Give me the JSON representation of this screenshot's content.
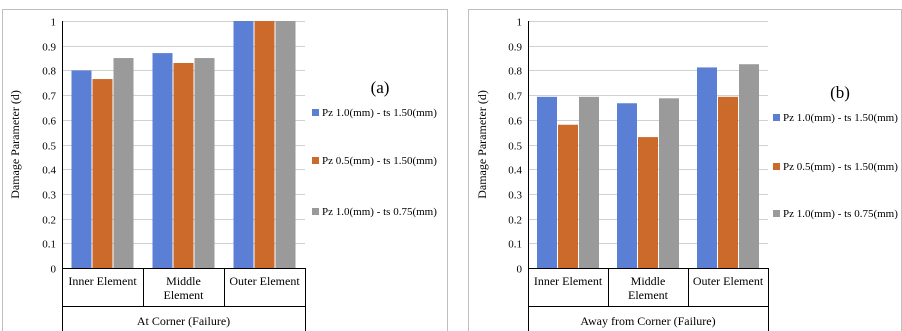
{
  "chart_data": [
    {
      "type": "bar",
      "panel_label": "(a)",
      "ylabel": "Damage Parameter (d)",
      "xlabel": "At Corner (Failure)",
      "ylim": [
        0,
        1
      ],
      "yticks": [
        "0",
        "0.1",
        "0.2",
        "0.3",
        "0.4",
        "0.5",
        "0.6",
        "0.7",
        "0.8",
        "0.9",
        "1"
      ],
      "grid": true,
      "legend_position": "right",
      "categories": [
        [
          "Inner Element"
        ],
        [
          "Middle",
          "Element"
        ],
        [
          "Outer Element"
        ]
      ],
      "series": [
        {
          "name": "Pz 1.0(mm) - ts 1.50(mm)",
          "color": "#5b7fd4",
          "values": [
            0.8,
            0.87,
            1.0
          ]
        },
        {
          "name": "Pz 0.5(mm) - ts 1.50(mm)",
          "color": "#cc6a2c",
          "values": [
            0.765,
            0.83,
            1.0
          ]
        },
        {
          "name": "Pz 1.0(mm) - ts 0.75(mm)",
          "color": "#9a9a9a",
          "values": [
            0.85,
            0.85,
            1.0
          ]
        }
      ]
    },
    {
      "type": "bar",
      "panel_label": "(b)",
      "ylabel": "Damage Parameter (d)",
      "xlabel": "Away from Corner (Failure)",
      "ylim": [
        0,
        1
      ],
      "yticks": [
        "0",
        "0.1",
        "0.2",
        "0.3",
        "0.4",
        "0.5",
        "0.6",
        "0.7",
        "0.8",
        "0.9",
        "1"
      ],
      "grid": true,
      "legend_position": "right",
      "categories": [
        [
          "Inner Element"
        ],
        [
          "Middle",
          "Element"
        ],
        [
          "Outer Element"
        ]
      ],
      "series": [
        {
          "name": "Pz 1.0(mm) - ts 1.50(mm)",
          "color": "#5b7fd4",
          "values": [
            0.693,
            0.667,
            0.812
          ]
        },
        {
          "name": "Pz 0.5(mm) - ts 1.50(mm)",
          "color": "#cc6a2c",
          "values": [
            0.58,
            0.53,
            0.693
          ]
        },
        {
          "name": "Pz 1.0(mm) - ts 0.75(mm)",
          "color": "#9a9a9a",
          "values": [
            0.693,
            0.687,
            0.825
          ]
        }
      ]
    }
  ]
}
